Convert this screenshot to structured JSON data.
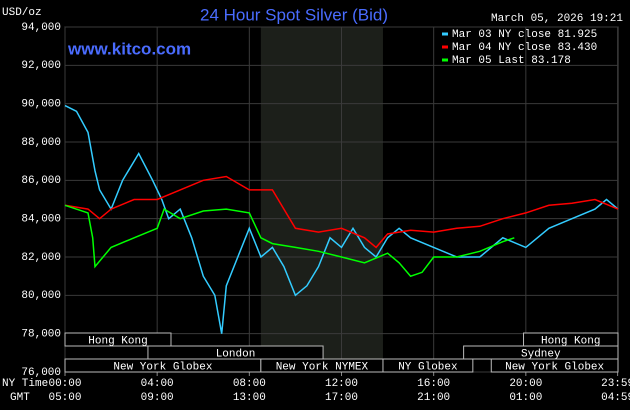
{
  "chart_data": {
    "type": "line",
    "title": "24 Hour Spot Silver (Bid)",
    "timestamp": "March 05, 2026 19:21",
    "watermark": "www.kitco.com",
    "y_label": "USD/oz",
    "x_label": "NY Time",
    "x2_label": "GMT",
    "xlim": [
      0,
      24
    ],
    "ylim": [
      76000,
      94000
    ],
    "yticks": [
      {
        "value": 76000,
        "label": "76,000"
      },
      {
        "value": 78000,
        "label": "78,000"
      },
      {
        "value": 80000,
        "label": "80,000"
      },
      {
        "value": 82000,
        "label": "82,000"
      },
      {
        "value": 84000,
        "label": "84,000"
      },
      {
        "value": 86000,
        "label": "86,000"
      },
      {
        "value": 88000,
        "label": "88,000"
      },
      {
        "value": 90000,
        "label": "90,000"
      },
      {
        "value": 92000,
        "label": "92,000"
      },
      {
        "value": 94000,
        "label": "94,000"
      }
    ],
    "xticks": [
      {
        "value": 0,
        "label": "00:00"
      },
      {
        "value": 4,
        "label": "04:00"
      },
      {
        "value": 8,
        "label": "08:00"
      },
      {
        "value": 12,
        "label": "12:00"
      },
      {
        "value": 16,
        "label": "16:00"
      },
      {
        "value": 20,
        "label": "20:00"
      },
      {
        "value": 23.983,
        "label": "23:59"
      }
    ],
    "gmt_labels": [
      "05:00",
      "09:00",
      "13:00",
      "17:00",
      "21:00",
      "01:00",
      "04:59"
    ],
    "grid": true,
    "highlight": [
      8.5,
      13.8
    ],
    "sessions": [
      [
        {
          "name": "Hong Kong",
          "start": 0,
          "end": 4.6
        },
        {
          "name": "Hong Kong",
          "start": 19.9,
          "end": 24
        }
      ],
      [
        {
          "name": "London",
          "start": 3.6,
          "end": 11.2
        },
        {
          "name": "Sydney",
          "start": 17.3,
          "end": 24
        }
      ],
      [
        {
          "name": "New York Globex",
          "start": 0,
          "end": 8.5
        },
        {
          "name": "New York NYMEX",
          "start": 8.5,
          "end": 13.8
        },
        {
          "name": "NY Globex",
          "start": 13.8,
          "end": 17.7
        },
        {
          "name": "New York Globex",
          "start": 18.5,
          "end": 24
        }
      ]
    ],
    "series": [
      {
        "name": "Mar 03 NY close 81.925",
        "color": "#33ccff",
        "x": [
          0,
          0.5,
          1,
          1.3,
          1.5,
          2,
          2.5,
          3,
          3.2,
          3.8,
          4.2,
          4.5,
          5,
          5.5,
          6,
          6.5,
          6.8,
          7,
          7.5,
          8,
          8.5,
          9,
          9.5,
          10,
          10.5,
          11,
          11.5,
          12,
          12.5,
          13,
          13.5,
          14,
          14.5,
          15,
          16,
          17,
          18,
          19,
          20,
          21,
          22,
          23,
          23.5,
          24
        ],
        "values": [
          89900,
          89600,
          88500,
          86500,
          85500,
          84500,
          86000,
          87000,
          87400,
          86000,
          85000,
          84000,
          84500,
          83000,
          81000,
          80000,
          78000,
          80500,
          82000,
          83500,
          82000,
          82500,
          81500,
          80000,
          80500,
          81500,
          83000,
          82500,
          83500,
          82500,
          82000,
          83000,
          83500,
          83000,
          82500,
          82000,
          82000,
          83000,
          82500,
          83500,
          84000,
          84500,
          85000,
          84500
        ]
      },
      {
        "name": "Mar 04 NY close 83.430",
        "color": "#ff0000",
        "x": [
          0,
          1,
          1.5,
          2,
          3,
          4,
          5,
          6,
          7,
          8,
          9,
          9.5,
          10,
          11,
          12,
          13,
          13.5,
          14,
          15,
          16,
          17,
          18,
          19,
          20,
          21,
          22,
          23,
          24
        ],
        "values": [
          84700,
          84500,
          84000,
          84500,
          85000,
          85000,
          85500,
          86000,
          86200,
          85500,
          85500,
          84500,
          83500,
          83300,
          83500,
          83000,
          82500,
          83200,
          83400,
          83300,
          83500,
          83600,
          84000,
          84300,
          84700,
          84800,
          85000,
          84500
        ]
      },
      {
        "name": "Mar 05 Last 83.178",
        "color": "#00ff00",
        "x": [
          0,
          1,
          1.2,
          1.3,
          2,
          3,
          4,
          4.3,
          5,
          6,
          7,
          8,
          8.5,
          9,
          10,
          11,
          12,
          13,
          14,
          14.5,
          15,
          15.5,
          16,
          17,
          18,
          19,
          19.5
        ],
        "values": [
          84700,
          84300,
          83000,
          81500,
          82500,
          83000,
          83500,
          84500,
          84000,
          84400,
          84500,
          84300,
          83000,
          82700,
          82500,
          82300,
          82000,
          81700,
          82200,
          81700,
          81000,
          81200,
          82000,
          82000,
          82300,
          82800,
          83000
        ]
      }
    ]
  }
}
